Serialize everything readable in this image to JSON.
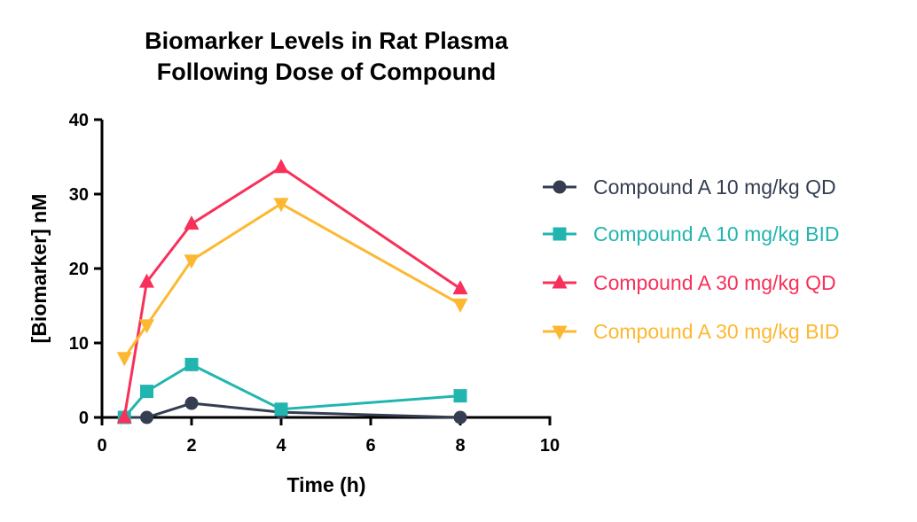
{
  "chart_data": {
    "type": "line",
    "title": [
      "Biomarker Levels in Rat Plasma",
      "Following Dose of Compound"
    ],
    "xlabel": "Time (h)",
    "ylabel": "[Biomarker] nM",
    "xlim": [
      0,
      10
    ],
    "ylim": [
      0,
      40
    ],
    "xticks": [
      0,
      2,
      4,
      6,
      8,
      10
    ],
    "yticks": [
      0,
      10,
      20,
      30,
      40
    ],
    "grid": false,
    "legend_position": "right",
    "series": [
      {
        "name": "Compound A 10 mg/kg QD",
        "color": "#343e50",
        "marker": "circle",
        "x": [
          0.5,
          1,
          2,
          4,
          8
        ],
        "y": [
          0,
          0,
          1.9,
          0.7,
          0
        ]
      },
      {
        "name": "Compound A 10 mg/kg BID",
        "color": "#22b5b0",
        "marker": "square",
        "x": [
          0.5,
          1,
          2,
          4,
          8
        ],
        "y": [
          0,
          3.5,
          7.1,
          1.1,
          2.9
        ]
      },
      {
        "name": "Compound A 30 mg/kg QD",
        "color": "#f8305a",
        "marker": "triangle-up",
        "x": [
          0.5,
          1,
          2,
          4,
          8
        ],
        "y": [
          0,
          18.2,
          26.0,
          33.6,
          17.3
        ]
      },
      {
        "name": "Compound A 30 mg/kg BID",
        "color": "#fdb831",
        "marker": "triangle-down",
        "x": [
          0.5,
          1,
          2,
          4,
          8
        ],
        "y": [
          8.0,
          12.4,
          21.1,
          28.7,
          15.2
        ]
      }
    ]
  }
}
